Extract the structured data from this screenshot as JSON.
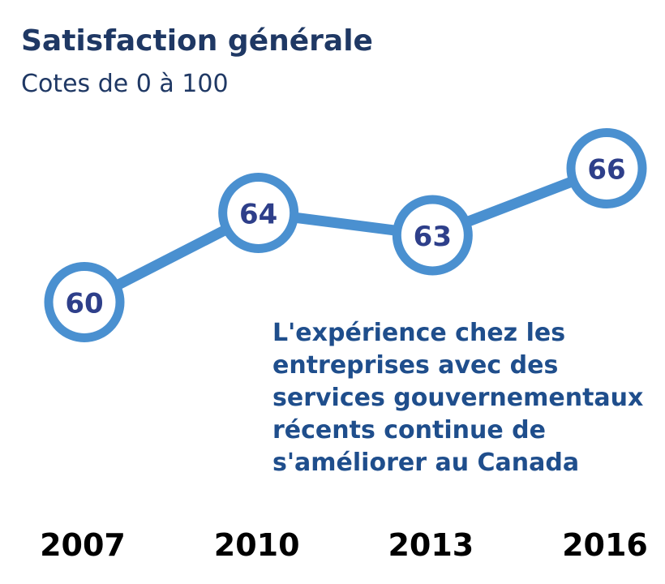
{
  "header": {
    "title": "Satisfaction générale",
    "subtitle": "Cotes de 0 à 100"
  },
  "annotation": {
    "lines": [
      "L'expérience chez les",
      "entreprises avec des",
      "services gouvernementaux",
      "récents continue de",
      "s'améliorer au Canada"
    ]
  },
  "colors": {
    "line": "#4a90d0",
    "marker_fill": "#ffffff",
    "value_text": "#2e3f8a",
    "title": "#1f3864",
    "annotation": "#1f4e8c",
    "axis_labels": "#000000"
  },
  "chart_data": {
    "type": "line",
    "title": "Satisfaction générale",
    "subtitle": "Cotes de 0 à 100",
    "xlabel": "",
    "ylabel": "",
    "categories": [
      "2007",
      "2010",
      "2013",
      "2016"
    ],
    "series": [
      {
        "values": [
          60,
          64,
          63,
          66
        ]
      }
    ],
    "data_labels": [
      "60",
      "64",
      "63",
      "66"
    ],
    "ylim": [
      0,
      100
    ],
    "grid": false,
    "legend": "none"
  }
}
